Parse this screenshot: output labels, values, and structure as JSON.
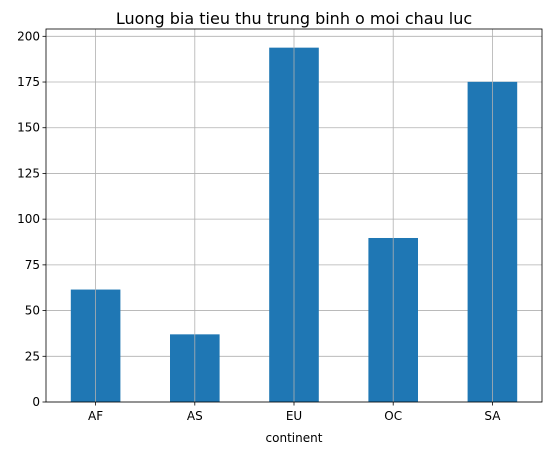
{
  "chart_data": {
    "type": "bar",
    "title": "Luong bia tieu thu trung binh o moi chau luc",
    "xlabel": "continent",
    "ylabel": "",
    "categories": [
      "AF",
      "AS",
      "EU",
      "OC",
      "SA"
    ],
    "values": [
      61.5,
      37.0,
      193.8,
      89.7,
      175.1
    ],
    "ylim": [
      0,
      204
    ],
    "yticks": [
      0,
      25,
      50,
      75,
      100,
      125,
      150,
      175,
      200
    ],
    "grid": true,
    "bar_color": "#1f77b4",
    "grid_color": "#b0b0b0"
  }
}
